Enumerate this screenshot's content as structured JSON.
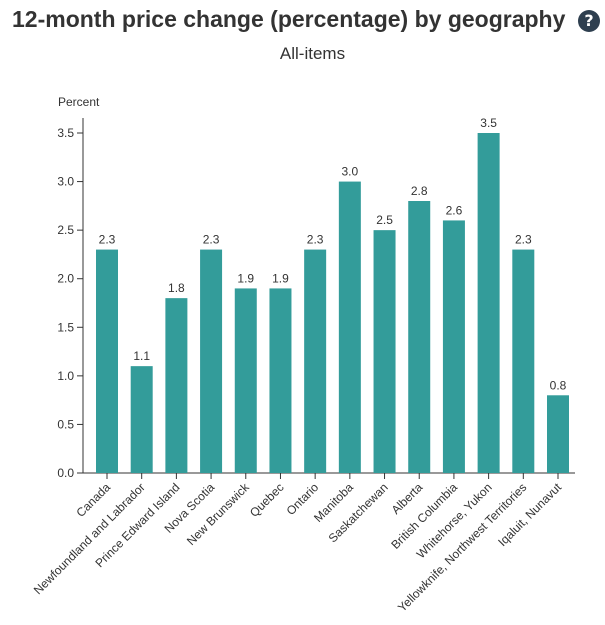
{
  "header": {
    "title": "12-month price change (percentage) by geography",
    "help_glyph": "?",
    "subtitle": "All-items"
  },
  "chart_data": {
    "type": "bar",
    "title": "12-month price change (percentage) by geography",
    "subtitle": "All-items",
    "xlabel": "",
    "ylabel": "Percent",
    "ylim": [
      0,
      3.5
    ],
    "yticks": [
      "0.0",
      "0.5",
      "1.0",
      "1.5",
      "2.0",
      "2.5",
      "3.0",
      "3.5"
    ],
    "bar_color": "#339c9a",
    "categories": [
      "Canada",
      "Newfoundland and Labrador",
      "Prince Edward Island",
      "Nova Scotia",
      "New Brunswick",
      "Quebec",
      "Ontario",
      "Manitoba",
      "Saskatchewan",
      "Alberta",
      "British Columbia",
      "Whitehorse, Yukon",
      "Yellowknife, Northwest Territories",
      "Iqaluit, Nunavut"
    ],
    "values": [
      2.3,
      1.1,
      1.8,
      2.3,
      1.9,
      1.9,
      2.3,
      3.0,
      2.5,
      2.8,
      2.6,
      3.5,
      2.3,
      0.8
    ],
    "value_labels": [
      "2.3",
      "1.1",
      "1.8",
      "2.3",
      "1.9",
      "1.9",
      "2.3",
      "3.0",
      "2.5",
      "2.8",
      "2.6",
      "3.5",
      "2.3",
      "0.8"
    ]
  }
}
